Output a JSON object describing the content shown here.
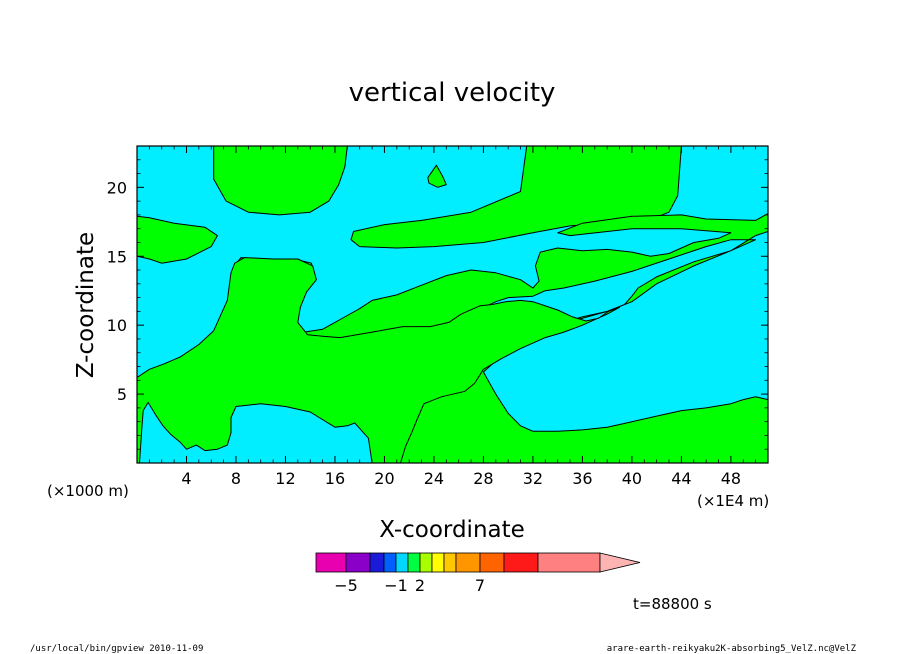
{
  "colors": {
    "background": "#ffffff",
    "field_positive": "#00ff00",
    "field_negative": "#00eeff",
    "contour": "#000000"
  },
  "chart_data": {
    "type": "heatmap",
    "title": "vertical velocity",
    "xlabel": "X-coordinate",
    "ylabel": "Z-coordinate",
    "x_unit_left": "(×1000 m)",
    "x_unit_right": "(×1E4 m)",
    "xlim": [
      0,
      51
    ],
    "ylim": [
      0,
      23
    ],
    "xticks": [
      {
        "value": 4,
        "label": "4"
      },
      {
        "value": 8,
        "label": "8"
      },
      {
        "value": 12,
        "label": "12"
      },
      {
        "value": 16,
        "label": "16"
      },
      {
        "value": 20,
        "label": "20"
      },
      {
        "value": 24,
        "label": "24"
      },
      {
        "value": 28,
        "label": "28"
      },
      {
        "value": 32,
        "label": "32"
      },
      {
        "value": 36,
        "label": "36"
      },
      {
        "value": 40,
        "label": "40"
      },
      {
        "value": 44,
        "label": "44"
      },
      {
        "value": 48,
        "label": "48"
      }
    ],
    "yticks": [
      {
        "value": 5,
        "label": "5"
      },
      {
        "value": 10,
        "label": "10"
      },
      {
        "value": 15,
        "label": "15"
      },
      {
        "value": 20,
        "label": "20"
      }
    ],
    "colorbar": {
      "colors": [
        "#e800b0",
        "#8a00c8",
        "#1a1ad8",
        "#0060ff",
        "#00d8ff",
        "#00ff40",
        "#a8ff00",
        "#ffff00",
        "#ffc800",
        "#ff9600",
        "#ff6400",
        "#ff1a1a",
        "#ff8080"
      ],
      "extend_color": "#ffb4b4",
      "tick_labels": [
        {
          "after_bin": 1,
          "label": "−5"
        },
        {
          "after_bin": 4,
          "label": "−1"
        },
        {
          "after_bin": 6,
          "label": "2"
        },
        {
          "after_bin": 10,
          "label": "7"
        }
      ]
    },
    "positive_regions": [
      [
        [
          0,
          15.0
        ],
        [
          1,
          14.8
        ],
        [
          2,
          14.5
        ],
        [
          4,
          14.8
        ],
        [
          6,
          15.7
        ],
        [
          6.5,
          16.5
        ],
        [
          5.5,
          17.1
        ],
        [
          3,
          17.4
        ],
        [
          1,
          17.8
        ],
        [
          0,
          17.9
        ]
      ],
      [
        [
          6.2,
          23
        ],
        [
          6.2,
          20.6
        ],
        [
          7.2,
          19
        ],
        [
          9,
          18.2
        ],
        [
          11.5,
          18
        ],
        [
          14,
          18.2
        ],
        [
          15.5,
          19
        ],
        [
          16.3,
          20.2
        ],
        [
          16.8,
          21.5
        ],
        [
          17,
          23
        ]
      ],
      [
        [
          23.5,
          23
        ],
        [
          31.5,
          23
        ],
        [
          31,
          19.7
        ],
        [
          27,
          18.2
        ],
        [
          23,
          17.6
        ],
        [
          20,
          17.3
        ],
        [
          17.5,
          16.8
        ],
        [
          17.3,
          16.2
        ],
        [
          18,
          15.7
        ],
        [
          21,
          15.6
        ],
        [
          24,
          15.7
        ],
        [
          28,
          16
        ],
        [
          32,
          16.7
        ],
        [
          35,
          17.2
        ],
        [
          38,
          17.4
        ],
        [
          41,
          17.5
        ],
        [
          43,
          18.2
        ],
        [
          43.7,
          19.4
        ],
        [
          44,
          23
        ]
      ],
      [
        [
          23.5,
          20.7
        ],
        [
          24.2,
          21.6
        ],
        [
          24.7,
          20.8
        ],
        [
          25,
          20.2
        ],
        [
          24.3,
          20
        ],
        [
          23.6,
          20.3
        ]
      ],
      [
        [
          34,
          16.7
        ],
        [
          36,
          17.4
        ],
        [
          40,
          17.9
        ],
        [
          44,
          18
        ],
        [
          46,
          17.7
        ],
        [
          50,
          17.6
        ],
        [
          51,
          18.1
        ],
        [
          51,
          16.8
        ],
        [
          50,
          16.5
        ],
        [
          48,
          15.4
        ],
        [
          45,
          14.3
        ],
        [
          42,
          13
        ],
        [
          40,
          11.7
        ],
        [
          38,
          11
        ],
        [
          36,
          10.5
        ],
        [
          34,
          10.1
        ],
        [
          32,
          9.3
        ],
        [
          30,
          8.4
        ],
        [
          28,
          7.3
        ],
        [
          27,
          6.2
        ],
        [
          26,
          5.4
        ],
        [
          24.5,
          5
        ],
        [
          23,
          4.5
        ],
        [
          22.5,
          3.8
        ],
        [
          22,
          2.8
        ],
        [
          21.5,
          1.7
        ],
        [
          21,
          0
        ],
        [
          51,
          0
        ],
        [
          51,
          4.6
        ],
        [
          50,
          4.8
        ],
        [
          49,
          4.6
        ],
        [
          48,
          4.3
        ],
        [
          46,
          4
        ],
        [
          44,
          3.8
        ],
        [
          42,
          3.4
        ],
        [
          40,
          3
        ],
        [
          38,
          2.6
        ],
        [
          36,
          2.4
        ],
        [
          34,
          2.3
        ],
        [
          32,
          2.3
        ],
        [
          31,
          2.7
        ],
        [
          30,
          3.6
        ],
        [
          29,
          5
        ],
        [
          28,
          6.6
        ],
        [
          30,
          8.2
        ],
        [
          32,
          9
        ],
        [
          34,
          10.1
        ],
        [
          36,
          10.6
        ],
        [
          38,
          11
        ],
        [
          39.4,
          11.5
        ],
        [
          40,
          12.1
        ],
        [
          40.5,
          12.7
        ],
        [
          42,
          13.5
        ],
        [
          45,
          14.6
        ],
        [
          48,
          15.4
        ],
        [
          50,
          16.2
        ],
        [
          48,
          16.2
        ],
        [
          46,
          15.7
        ],
        [
          43,
          14.8
        ],
        [
          40,
          13.9
        ],
        [
          37,
          13.2
        ],
        [
          34.5,
          12.7
        ],
        [
          33,
          12.5
        ],
        [
          32,
          12.1
        ],
        [
          30,
          12
        ],
        [
          29,
          11.7
        ],
        [
          28,
          11.3
        ],
        [
          27,
          11.1
        ],
        [
          26,
          10.5
        ],
        [
          25,
          10
        ],
        [
          24,
          9.5
        ],
        [
          22,
          9.3
        ],
        [
          20,
          9.3
        ],
        [
          18,
          9.1
        ],
        [
          16,
          8.6
        ],
        [
          14,
          8.3
        ],
        [
          12,
          8.5
        ],
        [
          10,
          9
        ],
        [
          9,
          9.5
        ],
        [
          8.2,
          11
        ],
        [
          8.3,
          12.5
        ],
        [
          7.8,
          14.2
        ],
        [
          8.4,
          14.9
        ],
        [
          10.6,
          14.8
        ],
        [
          12.7,
          14.8
        ],
        [
          14.1,
          14.5
        ],
        [
          14.4,
          13.3
        ],
        [
          13.5,
          12.3
        ],
        [
          13,
          11.2
        ],
        [
          12.8,
          10
        ],
        [
          13.5,
          9.5
        ],
        [
          15,
          9.7
        ],
        [
          17,
          10.7
        ],
        [
          18,
          11.2
        ],
        [
          19,
          11.8
        ],
        [
          21,
          12.2
        ],
        [
          23,
          12.9
        ],
        [
          25,
          13.6
        ],
        [
          27,
          14
        ],
        [
          29,
          13.8
        ],
        [
          31,
          13.3
        ],
        [
          32,
          12.7
        ],
        [
          32.5,
          13.2
        ],
        [
          32.2,
          14.3
        ],
        [
          32.6,
          15.3
        ],
        [
          34,
          15.6
        ],
        [
          36,
          15.4
        ],
        [
          38,
          15.5
        ],
        [
          40,
          15.3
        ],
        [
          41.5,
          15
        ],
        [
          43,
          15.2
        ],
        [
          45,
          16
        ],
        [
          47,
          16.3
        ],
        [
          48,
          16.7
        ],
        [
          44,
          17
        ],
        [
          40,
          17
        ],
        [
          38,
          16.8
        ],
        [
          35,
          16.5
        ]
      ],
      [
        [
          0,
          0
        ],
        [
          0,
          6.2
        ],
        [
          1,
          6.8
        ],
        [
          2.2,
          7.2
        ],
        [
          3.5,
          7.7
        ],
        [
          5,
          8.6
        ],
        [
          6.2,
          9.6
        ],
        [
          7.3,
          11.8
        ],
        [
          7.6,
          13.8
        ],
        [
          7.9,
          14.5
        ],
        [
          8.7,
          14.9
        ],
        [
          11,
          14.8
        ],
        [
          13,
          14.8
        ],
        [
          14.2,
          14.3
        ],
        [
          14.5,
          13.3
        ],
        [
          13.7,
          12.4
        ],
        [
          13.2,
          11.3
        ],
        [
          13,
          10.2
        ],
        [
          13.8,
          9.3
        ],
        [
          15,
          9.2
        ],
        [
          16.4,
          9.1
        ],
        [
          19,
          9.5
        ],
        [
          21.5,
          9.9
        ],
        [
          23.7,
          9.9
        ],
        [
          25.2,
          10.2
        ],
        [
          26.2,
          10.8
        ],
        [
          27.7,
          11.4
        ],
        [
          28.7,
          11.5
        ],
        [
          29.8,
          11.7
        ],
        [
          31,
          11.8
        ],
        [
          32,
          11.7
        ],
        [
          33,
          11.4
        ],
        [
          34,
          11.1
        ],
        [
          35.2,
          10.6
        ],
        [
          36.3,
          10.3
        ],
        [
          37.3,
          10.5
        ],
        [
          38.1,
          11
        ],
        [
          39,
          11.3
        ],
        [
          38,
          10.8
        ],
        [
          36,
          10
        ],
        [
          34.5,
          9.5
        ],
        [
          33,
          9.1
        ],
        [
          31,
          8.3
        ],
        [
          29.5,
          7.6
        ],
        [
          28,
          6.8
        ],
        [
          27.3,
          5.8
        ],
        [
          26.5,
          5.2
        ],
        [
          24.6,
          4.8
        ],
        [
          23.2,
          4.3
        ],
        [
          22.7,
          3.3
        ],
        [
          22.2,
          2.2
        ],
        [
          21.7,
          1.2
        ],
        [
          21.3,
          0
        ],
        [
          19,
          0
        ],
        [
          18.7,
          1.8
        ],
        [
          17.6,
          2.9
        ],
        [
          17,
          2.7
        ],
        [
          16,
          2.6
        ],
        [
          14,
          3.7
        ],
        [
          12,
          4.1
        ],
        [
          10,
          4.3
        ],
        [
          8,
          4.1
        ],
        [
          7.6,
          3.3
        ],
        [
          7.6,
          2.2
        ],
        [
          7.3,
          1.3
        ],
        [
          6.5,
          1.0
        ],
        [
          5.5,
          0.9
        ],
        [
          4.8,
          1.3
        ],
        [
          4,
          1.0
        ],
        [
          3.5,
          1.5
        ],
        [
          2.7,
          2.1
        ],
        [
          2.1,
          2.7
        ],
        [
          1.5,
          3.5
        ],
        [
          0.9,
          4.4
        ],
        [
          0.5,
          3.8
        ],
        [
          0.4,
          2.6
        ],
        [
          0.2,
          0
        ]
      ]
    ],
    "time_label": "t=88800 s"
  },
  "footer": {
    "left": "/usr/local/bin/gpview   2010-11-09",
    "right": "arare-earth-reikyaku2K-absorbing5_VelZ.nc@VelZ"
  }
}
